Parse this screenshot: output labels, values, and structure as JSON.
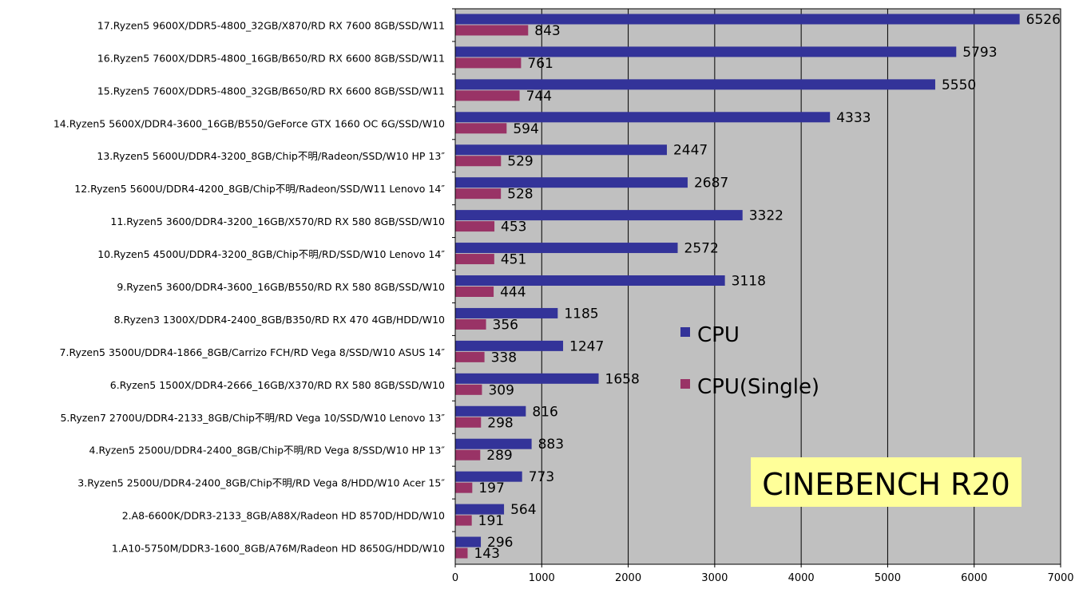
{
  "chart_data": {
    "type": "bar",
    "orientation": "horizontal",
    "title": "CINEBENCH R20",
    "categories": [
      "17.Ryzen5 9600X/DDR5-4800_32GB/X870/RD RX 7600 8GB/SSD/W11",
      "16.Ryzen5 7600X/DDR5-4800_16GB/B650/RD RX 6600 8GB/SSD/W11",
      "15.Ryzen5 7600X/DDR5-4800_32GB/B650/RD RX 6600 8GB/SSD/W11",
      "14.Ryzen5 5600X/DDR4-3600_16GB/B550/GeForce GTX 1660 OC 6G/SSD/W10",
      "13.Ryzen5 5600U/DDR4-3200_8GB/Chip不明/Radeon/SSD/W10 HP 13″",
      "12.Ryzen5 5600U/DDR4-4200_8GB/Chip不明/Radeon/SSD/W11 Lenovo 14″",
      "11.Ryzen5 3600/DDR4-3200_16GB/X570/RD RX 580 8GB/SSD/W10",
      "10.Ryzen5 4500U/DDR4-3200_8GB/Chip不明/RD/SSD/W10 Lenovo 14″",
      "9.Ryzen5 3600/DDR4-3600_16GB/B550/RD RX 580 8GB/SSD/W10",
      "8.Ryzen3 1300X/DDR4-2400_8GB/B350/RD RX 470 4GB/HDD/W10",
      "7.Ryzen5 3500U/DDR4-1866_8GB/Carrizo FCH/RD Vega 8/SSD/W10 ASUS 14″",
      "6.Ryzen5 1500X/DDR4-2666_16GB/X370/RD RX 580 8GB/SSD/W10",
      "5.Ryzen7 2700U/DDR4-2133_8GB/Chip不明/RD Vega 10/SSD/W10 Lenovo 13″",
      "4.Ryzen5 2500U/DDR4-2400_8GB/Chip不明/RD Vega  8/SSD/W10 HP 13″",
      "3.Ryzen5 2500U/DDR4-2400_8GB/Chip不明/RD Vega  8/HDD/W10 Acer 15″",
      "2.A8-6600K/DDR3-2133_8GB/A88X/Radeon HD 8570D/HDD/W10",
      "1.A10-5750M/DDR3-1600_8GB/A76M/Radeon HD 8650G/HDD/W10"
    ],
    "series": [
      {
        "name": "CPU",
        "color": "#333399",
        "values": [
          6526,
          5793,
          5550,
          4333,
          2447,
          2687,
          3322,
          2572,
          3118,
          1185,
          1247,
          1658,
          816,
          883,
          773,
          564,
          296
        ]
      },
      {
        "name": "CPU(Single)",
        "color": "#993366",
        "values": [
          843,
          761,
          744,
          594,
          529,
          528,
          453,
          451,
          444,
          356,
          338,
          309,
          298,
          289,
          197,
          191,
          143
        ]
      }
    ],
    "xlim": [
      0,
      7000
    ],
    "xticks": [
      "0",
      "1000",
      "2000",
      "3000",
      "4000",
      "5000",
      "6000",
      "7000"
    ],
    "grid": true,
    "plot_background": "#c0c0c0",
    "title_background": "#ffff99",
    "legend_position": "center-right"
  }
}
